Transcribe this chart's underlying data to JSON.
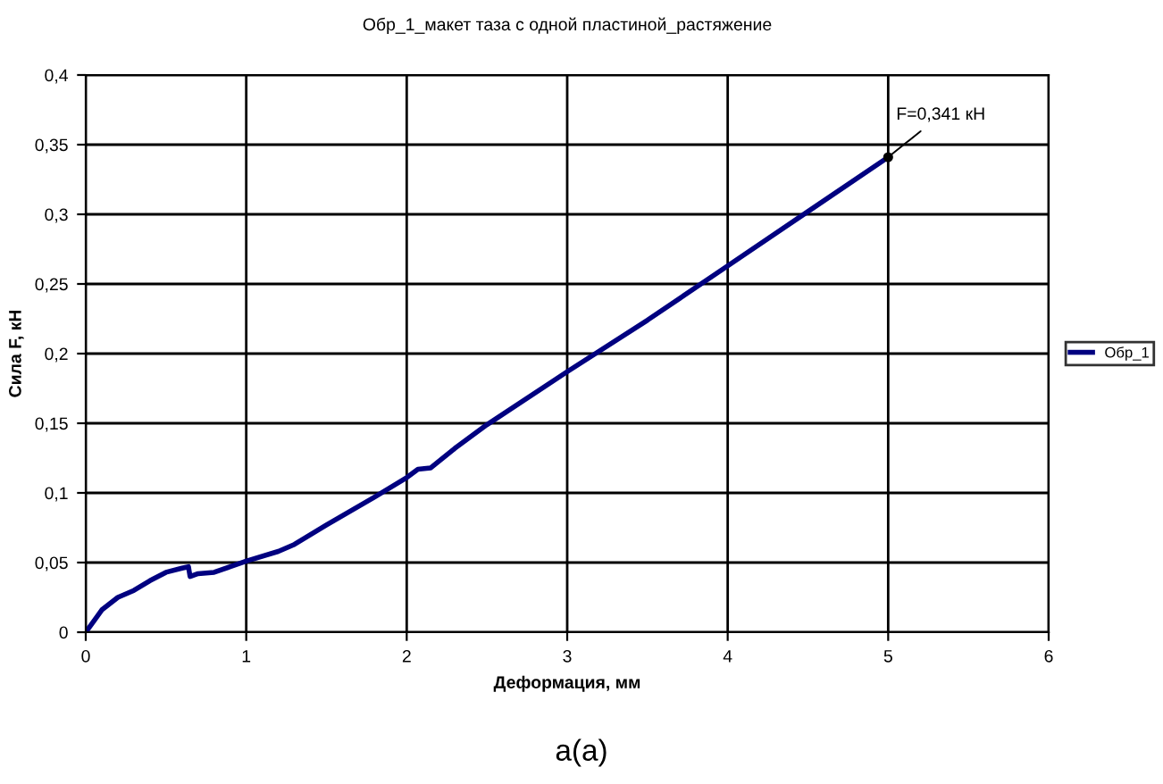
{
  "chart_data": {
    "type": "line",
    "title": "Обр_1_макет таза с одной пластиной_растяжение",
    "xlabel": "Деформация, мм",
    "ylabel": "Сила F, кН",
    "series": [
      {
        "name": "Обр_1",
        "color": "#000080",
        "x": [
          0,
          0.05,
          0.1,
          0.2,
          0.3,
          0.4,
          0.5,
          0.6,
          0.64,
          0.65,
          0.7,
          0.8,
          0.9,
          1.0,
          1.2,
          1.3,
          1.5,
          1.8,
          2.0,
          2.07,
          2.15,
          2.3,
          2.5,
          3.0,
          3.5,
          4.0,
          4.5,
          5.0
        ],
        "values": [
          0,
          0.008,
          0.016,
          0.025,
          0.03,
          0.037,
          0.043,
          0.046,
          0.047,
          0.04,
          0.042,
          0.043,
          0.047,
          0.051,
          0.058,
          0.063,
          0.077,
          0.097,
          0.111,
          0.117,
          0.118,
          0.132,
          0.149,
          0.187,
          0.224,
          0.263,
          0.302,
          0.341
        ]
      }
    ],
    "xlim": [
      0,
      6
    ],
    "xticks": [
      0,
      1,
      2,
      3,
      4,
      5,
      6
    ],
    "ylim": [
      0,
      0.4
    ],
    "yticks": [
      {
        "value": 0,
        "label": "0"
      },
      {
        "value": 0.05,
        "label": "0,05"
      },
      {
        "value": 0.1,
        "label": "0,1"
      },
      {
        "value": 0.15,
        "label": "0,15"
      },
      {
        "value": 0.2,
        "label": "0,2"
      },
      {
        "value": 0.25,
        "label": "0,25"
      },
      {
        "value": 0.3,
        "label": "0,3"
      },
      {
        "value": 0.35,
        "label": "0,35"
      },
      {
        "value": 0.4,
        "label": "0,4"
      }
    ],
    "annotations": [
      {
        "text": "F=0,341 кН",
        "x": 5.0,
        "y": 0.341
      },
      "a(a)"
    ],
    "grid": true,
    "legend": "right",
    "marker": "none",
    "line_style": "solid"
  }
}
